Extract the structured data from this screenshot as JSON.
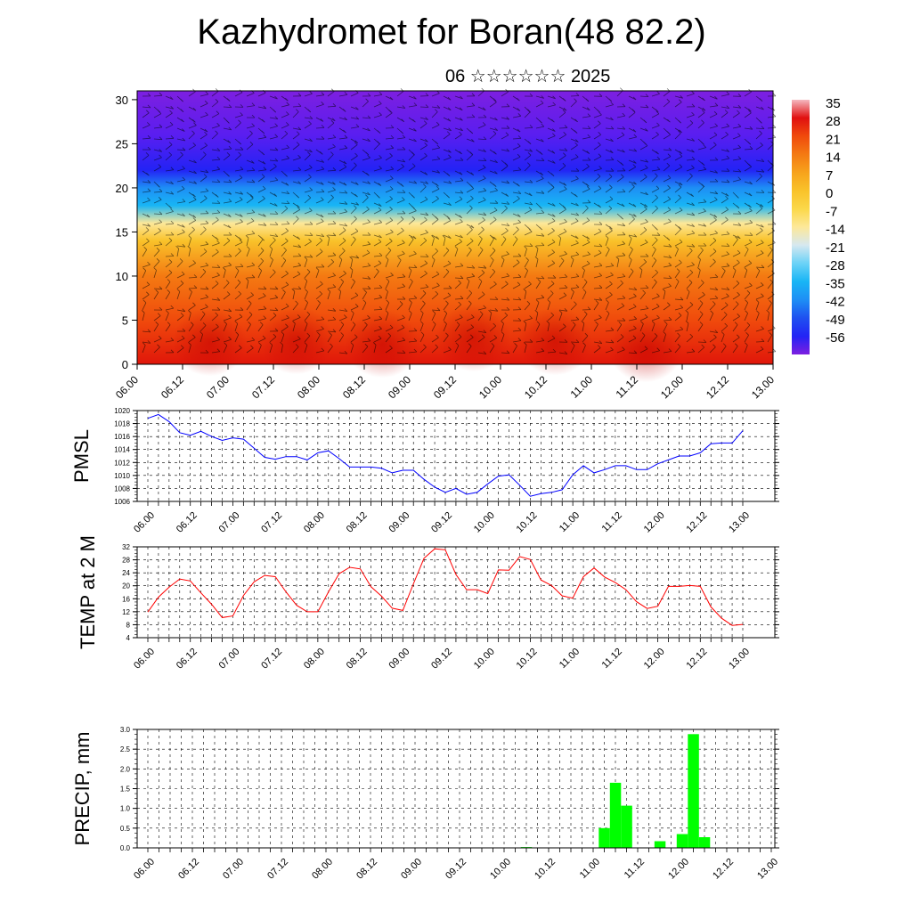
{
  "title": "Kazhydromet for Boran(48 82.2)",
  "subtitle": "06 ☆☆☆☆☆☆ 2025",
  "colors": {
    "pmsl_line": "#0000ff",
    "temp_line": "#ff0000",
    "precip_bar": "#00ff00",
    "grid": "#000000",
    "wind_barb": "#000000"
  },
  "chart_data": [
    {
      "type": "heatmap",
      "title": "",
      "xlabel": "",
      "ylabel": "",
      "x_ticks": [
        "06.00",
        "06.12",
        "07.00",
        "07.12",
        "08.00",
        "08.12",
        "09.00",
        "09.12",
        "10.00",
        "10.12",
        "11.00",
        "11.12",
        "12.00",
        "12.12",
        "13.00"
      ],
      "ylim": [
        0,
        31
      ],
      "y_ticks": [
        0,
        5,
        10,
        15,
        20,
        25,
        30
      ],
      "colorbar_labels": [
        "35",
        "28",
        "21",
        "14",
        "7",
        "0",
        "-7",
        "-14",
        "-21",
        "-28",
        "-35",
        "-42",
        "-49",
        "-56"
      ],
      "temperature_profile": [
        {
          "height": 0,
          "value": 30
        },
        {
          "height": 5,
          "value": 24
        },
        {
          "height": 10,
          "value": 15
        },
        {
          "height": 14,
          "value": 3
        },
        {
          "height": 16,
          "value": -10
        },
        {
          "height": 18,
          "value": -22
        },
        {
          "height": 20,
          "value": -35
        },
        {
          "height": 22,
          "value": -50
        },
        {
          "height": 26,
          "value": -56
        },
        {
          "height": 31,
          "value": -62
        }
      ],
      "overlay": "wind barbs"
    },
    {
      "type": "line",
      "ylabel": "PMSL",
      "ylim": [
        1006,
        1020
      ],
      "y_ticks": [
        1006,
        1008,
        1010,
        1012,
        1014,
        1016,
        1018,
        1020
      ],
      "x_ticks": [
        "06.00",
        "06.12",
        "07.00",
        "07.12",
        "08.00",
        "08.12",
        "09.00",
        "09.12",
        "10.00",
        "10.12",
        "11.00",
        "11.12",
        "12.00",
        "12.12",
        "13.00"
      ],
      "x_step_hours": 3,
      "series": [
        {
          "values": [
            1018.8,
            1019.4,
            1018.3,
            1016.6,
            1016.2,
            1016.8,
            1016.0,
            1015.4,
            1015.8,
            1015.6,
            1014.2,
            1012.8,
            1012.5,
            1012.9,
            1012.9,
            1012.4,
            1013.5,
            1013.8,
            1012.6,
            1011.3,
            1011.3,
            1011.3,
            1011.1,
            1010.4,
            1010.8,
            1010.8,
            1009.4,
            1008.2,
            1007.4,
            1008.0,
            1007.1,
            1007.4,
            1008.7,
            1009.9,
            1010.1,
            1008.5,
            1006.8,
            1007.2,
            1007.4,
            1007.8,
            1010.1,
            1011.5,
            1010.4,
            1010.9,
            1011.5,
            1011.5,
            1010.9,
            1010.9,
            1011.8,
            1012.4,
            1013.0,
            1013.0,
            1013.5,
            1014.9,
            1015.0,
            1015.0,
            1016.9
          ]
        }
      ]
    },
    {
      "type": "line",
      "ylabel": "TEMP at 2 M",
      "ylim": [
        4,
        32
      ],
      "y_ticks": [
        4,
        8,
        12,
        16,
        20,
        24,
        28,
        32
      ],
      "x_ticks": [
        "06.00",
        "06.12",
        "07.00",
        "07.12",
        "08.00",
        "08.12",
        "09.00",
        "09.12",
        "10.00",
        "10.12",
        "11.00",
        "11.12",
        "12.00",
        "12.12",
        "13.00"
      ],
      "x_step_hours": 3,
      "series": [
        {
          "values": [
            11.9,
            16.5,
            19.6,
            22.1,
            21.5,
            17.8,
            14.3,
            10.2,
            10.7,
            17.0,
            21.2,
            23.2,
            22.8,
            18.1,
            14.0,
            12.0,
            12.0,
            18.1,
            23.7,
            25.7,
            25.2,
            19.7,
            16.8,
            13.1,
            12.4,
            20.6,
            28.5,
            31.4,
            31.1,
            23.5,
            18.8,
            18.8,
            17.6,
            24.9,
            24.8,
            29.0,
            28.1,
            21.8,
            20.1,
            16.9,
            16.2,
            22.8,
            25.5,
            22.7,
            21.0,
            18.8,
            15.1,
            13.0,
            13.7,
            19.8,
            19.8,
            20.1,
            19.8,
            13.5,
            10.0,
            7.8,
            8.1
          ]
        }
      ]
    },
    {
      "type": "bar",
      "ylabel": "PRECIP, mm",
      "ylim": [
        0,
        3.0
      ],
      "y_ticks": [
        "0.0",
        "0.5",
        "1.0",
        "1.5",
        "2.0",
        "2.5",
        "3.0"
      ],
      "x_ticks": [
        "06.00",
        "06.12",
        "07.00",
        "07.12",
        "08.00",
        "08.12",
        "09.00",
        "09.12",
        "10.00",
        "10.12",
        "11.00",
        "11.12",
        "12.00",
        "12.12",
        "13.00"
      ],
      "x_step_hours": 3,
      "values": [
        0,
        0,
        0,
        0,
        0,
        0,
        0,
        0,
        0,
        0,
        0,
        0,
        0,
        0,
        0,
        0,
        0,
        0,
        0,
        0,
        0,
        0,
        0,
        0,
        0,
        0,
        0,
        0,
        0,
        0,
        0,
        0,
        0.01,
        0,
        0.02,
        0,
        0,
        0,
        0,
        0,
        0,
        0.5,
        1.65,
        1.07,
        0,
        0,
        0.17,
        0,
        0.35,
        2.88,
        0.27,
        0,
        0,
        0,
        0,
        0
      ]
    }
  ]
}
